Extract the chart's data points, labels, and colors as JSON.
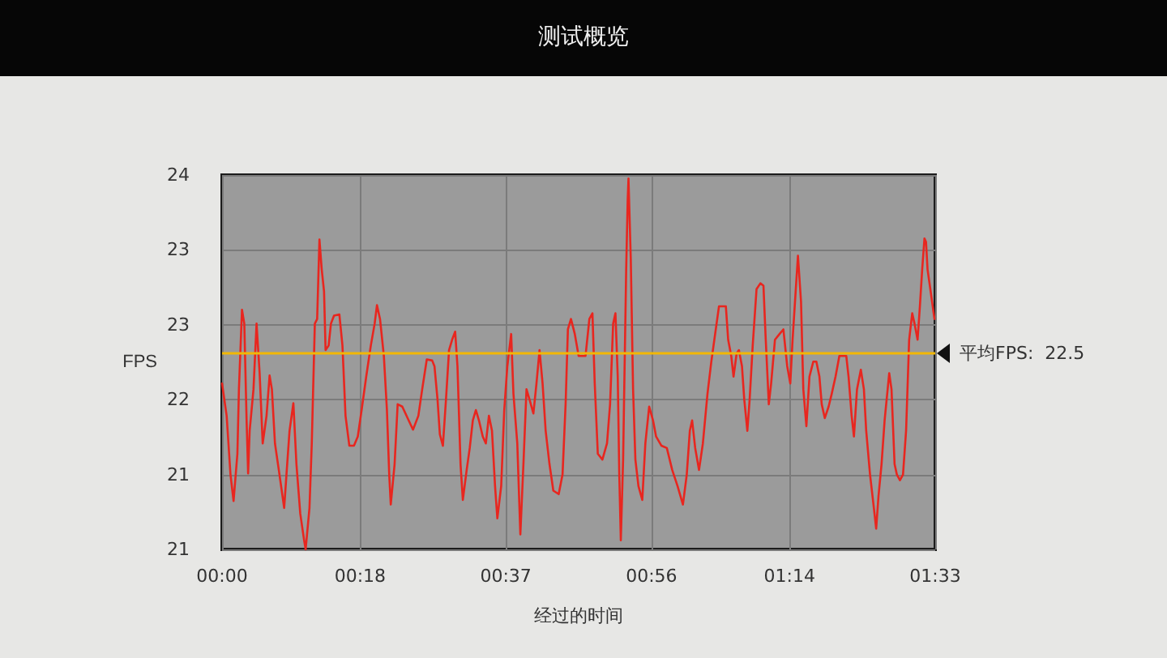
{
  "chart_data": {
    "type": "line",
    "title": "测试概览",
    "xlabel": "经过的时间",
    "ylabel": "FPS",
    "x": [
      0,
      0.6,
      1.1,
      1.5,
      2.0,
      2.2,
      2.6,
      2.9,
      3.2,
      3.4,
      3.6,
      4.1,
      4.5,
      4.9,
      5.3,
      5.8,
      6.2,
      6.5,
      6.9,
      7.4,
      7.7,
      8.1,
      8.4,
      8.8,
      9.3,
      9.7,
      10.2,
      10.7,
      10.9,
      11.4,
      11.7,
      12.1,
      12.4,
      12.7,
      13.0,
      13.3,
      13.5,
      13.9,
      14.2,
      14.6,
      15.3,
      15.7,
      16.1,
      16.6,
      17.2,
      17.7,
      18.2,
      18.8,
      19.4,
      19.9,
      20.2,
      20.6,
      21.1,
      21.5,
      21.8,
      22.0,
      22.5,
      22.9,
      23.5,
      24.2,
      24.9,
      25.6,
      26.1,
      26.7,
      27.4,
      27.7,
      28.1,
      28.4,
      28.8,
      29.2,
      29.6,
      30.0,
      30.4,
      30.7,
      31.1,
      31.4,
      31.9,
      32.3,
      32.7,
      33.1,
      33.5,
      34.0,
      34.4,
      34.8,
      35.2,
      35.6,
      35.9,
      36.4,
      36.8,
      37.2,
      37.7,
      38.0,
      38.5,
      38.9,
      39.3,
      39.7,
      40.1,
      40.6,
      41.0,
      41.4,
      41.8,
      42.2,
      42.7,
      43.2,
      43.9,
      44.4,
      44.8,
      45.1,
      45.5,
      46.0,
      46.5,
      47.4,
      47.9,
      48.3,
      48.6,
      49.0,
      49.6,
      50.2,
      50.6,
      51.0,
      51.3,
      51.6,
      51.8,
      52.0,
      52.3,
      52.7,
      52.9,
      53.0,
      53.3,
      53.6,
      53.9,
      54.3,
      54.8,
      55.2,
      55.7,
      56.2,
      56.6,
      57.3,
      58.0,
      58.7,
      59.4,
      60.1,
      60.6,
      61.0,
      61.3,
      61.7,
      62.2,
      62.7,
      63.3,
      63.8,
      64.3,
      64.8,
      65.7,
      66.0,
      66.4,
      66.7,
      67.1,
      67.4,
      67.8,
      68.1,
      68.5,
      68.8,
      69.2,
      69.7,
      70.2,
      70.6,
      70.9,
      71.3,
      71.6,
      72.1,
      72.7,
      73.2,
      73.7,
      74.1,
      74.4,
      74.8,
      75.1,
      75.5,
      75.8,
      76.2,
      76.6,
      77.1,
      77.5,
      77.9,
      78.2,
      78.6,
      79.1,
      79.5,
      80.0,
      80.5,
      81.4,
      81.7,
      82.1,
      82.4,
      82.8,
      83.3,
      83.7,
      84.0,
      84.5,
      85.0,
      85.3,
      85.6,
      86.0,
      86.4,
      87.0,
      87.3,
      87.7,
      88.0,
      88.4,
      88.8,
      89.2,
      89.6,
      90.0,
      90.3,
      90.7,
      91.0,
      91.3,
      91.6,
      91.8,
      92.0,
      92.3,
      92.9
    ],
    "series": [
      {
        "color": "#e8261f",
        "values": [
          22.24,
          21.96,
          21.45,
          21.22,
          21.63,
          22.19,
          22.88,
          22.76,
          21.92,
          21.46,
          21.83,
          22.19,
          22.76,
          22.33,
          21.72,
          21.96,
          22.31,
          22.19,
          21.72,
          21.49,
          21.35,
          21.16,
          21.45,
          21.83,
          22.07,
          21.54,
          21.11,
          20.88,
          20.8,
          21.16,
          21.72,
          22.76,
          22.8,
          23.49,
          23.23,
          23.04,
          22.53,
          22.57,
          22.76,
          22.83,
          22.84,
          22.57,
          21.96,
          21.7,
          21.7,
          21.78,
          22.01,
          22.3,
          22.57,
          22.76,
          22.92,
          22.8,
          22.48,
          22.01,
          21.45,
          21.19,
          21.54,
          22.06,
          22.04,
          21.94,
          21.84,
          21.96,
          22.19,
          22.45,
          22.44,
          22.39,
          22.1,
          21.8,
          21.7,
          22.1,
          22.53,
          22.62,
          22.69,
          22.39,
          21.54,
          21.23,
          21.49,
          21.68,
          21.92,
          22.01,
          21.92,
          21.78,
          21.72,
          21.96,
          21.83,
          21.35,
          21.07,
          21.35,
          22.01,
          22.39,
          22.67,
          22.15,
          21.72,
          20.93,
          21.54,
          22.19,
          22.1,
          21.98,
          22.24,
          22.53,
          22.24,
          21.83,
          21.54,
          21.31,
          21.28,
          21.45,
          22.06,
          22.71,
          22.8,
          22.67,
          22.48,
          22.48,
          22.8,
          22.85,
          22.24,
          21.63,
          21.58,
          21.72,
          22.06,
          22.76,
          22.85,
          22.3,
          21.45,
          20.88,
          21.58,
          23.23,
          23.84,
          24.02,
          23.32,
          22.19,
          21.58,
          21.35,
          21.23,
          21.72,
          22.04,
          21.92,
          21.78,
          21.7,
          21.68,
          21.49,
          21.35,
          21.19,
          21.45,
          21.83,
          21.92,
          21.68,
          21.49,
          21.72,
          22.15,
          22.43,
          22.67,
          22.91,
          22.91,
          22.62,
          22.48,
          22.3,
          22.5,
          22.53,
          22.39,
          22.1,
          21.83,
          22.1,
          22.57,
          23.06,
          23.11,
          23.09,
          22.62,
          22.06,
          22.24,
          22.62,
          22.67,
          22.71,
          22.39,
          22.24,
          22.62,
          23.04,
          23.35,
          22.95,
          22.19,
          21.87,
          22.3,
          22.43,
          22.43,
          22.3,
          22.06,
          21.94,
          22.04,
          22.15,
          22.3,
          22.48,
          22.48,
          22.3,
          21.96,
          21.78,
          22.19,
          22.36,
          22.19,
          21.83,
          21.45,
          21.16,
          20.98,
          21.26,
          21.54,
          21.92,
          22.33,
          22.19,
          21.54,
          21.45,
          21.4,
          21.45,
          21.83,
          22.62,
          22.85,
          22.76,
          22.62,
          22.91,
          23.23,
          23.5,
          23.47,
          23.23,
          23.09,
          22.8
        ]
      }
    ],
    "xlim": [
      0,
      93
    ],
    "xticks": [
      {
        "value": 0,
        "label": "00:00"
      },
      {
        "value": 18,
        "label": "00:18"
      },
      {
        "value": 37,
        "label": "00:37"
      },
      {
        "value": 56,
        "label": "00:56"
      },
      {
        "value": 74,
        "label": "01:14"
      },
      {
        "value": 93,
        "label": "01:33"
      }
    ],
    "ylim": [
      20.8,
      24.05
    ],
    "yticks": [
      {
        "value": 20.8,
        "label": "21"
      },
      {
        "value": 21.45,
        "label": "21"
      },
      {
        "value": 22.1,
        "label": "22"
      },
      {
        "value": 22.75,
        "label": "23"
      },
      {
        "value": 23.4,
        "label": "23"
      },
      {
        "value": 24.05,
        "label": "24"
      }
    ],
    "grid": true,
    "marker": "none",
    "ref_lines": [
      {
        "axis": "y",
        "value": 22.5,
        "label": "平均FPS:  22.5",
        "color": "#f2b705"
      }
    ]
  }
}
